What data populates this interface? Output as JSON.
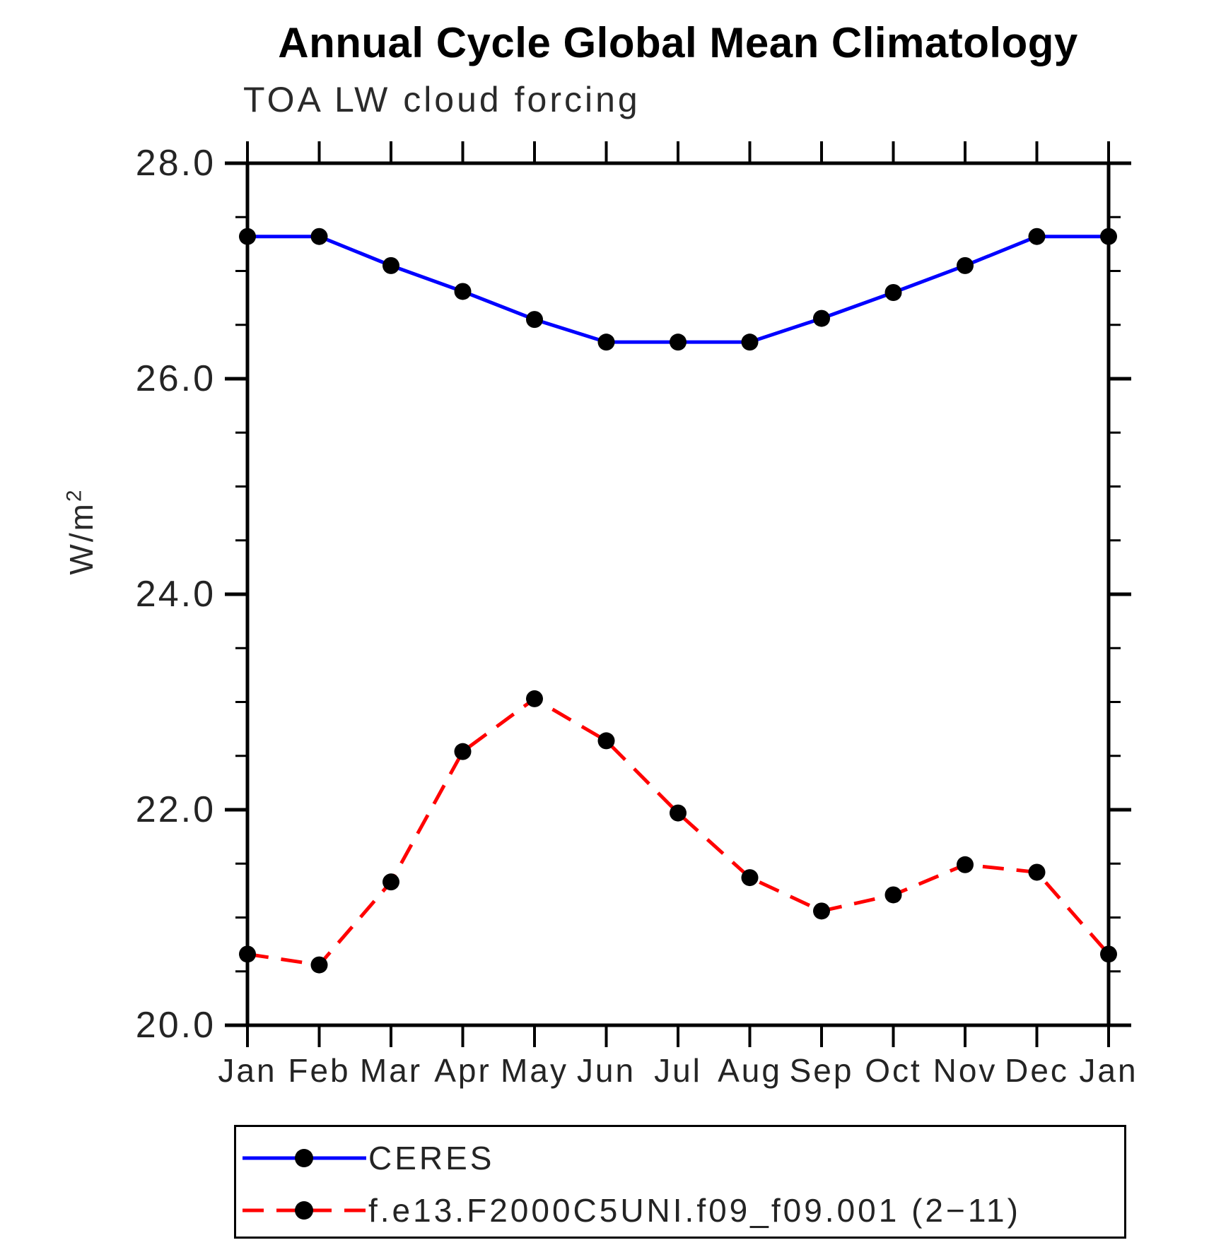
{
  "header": {
    "title": "Annual Cycle Global Mean Climatology",
    "subtitle": "TOA LW cloud forcing"
  },
  "y_axis": {
    "label_base": "W/m",
    "label_sup": "2"
  },
  "legend": {
    "position": "bottom",
    "entries": [
      {
        "label": "CERES",
        "color": "#0000ff",
        "style": "solid"
      },
      {
        "label": "f.e13.F2000C5UNI.f09_f09.001 (2−11)",
        "color": "#ff0000",
        "style": "dashed"
      }
    ]
  },
  "chart_data": {
    "type": "line",
    "title": "Annual Cycle Global Mean Climatology",
    "subtitle": "TOA LW cloud forcing",
    "ylabel": "W/m^2",
    "x": [
      "Jan",
      "Feb",
      "Mar",
      "Apr",
      "May",
      "Jun",
      "Jul",
      "Aug",
      "Sep",
      "Oct",
      "Nov",
      "Dec",
      "Jan"
    ],
    "series": [
      {
        "name": "CERES",
        "color": "#0000ff",
        "style": "solid",
        "values": [
          27.32,
          27.32,
          27.05,
          26.81,
          26.55,
          26.34,
          26.34,
          26.34,
          26.56,
          26.8,
          27.05,
          27.32,
          27.32
        ]
      },
      {
        "name": "f.e13.F2000C5UNI.f09_f09.001 (2−11)",
        "color": "#ff0000",
        "style": "dashed",
        "values": [
          20.66,
          20.56,
          21.33,
          22.54,
          23.03,
          22.64,
          21.97,
          21.37,
          21.06,
          21.21,
          21.49,
          21.42,
          20.66
        ]
      }
    ],
    "ylim": [
      20.0,
      28.0
    ],
    "ytick_major": [
      28.0,
      26.0,
      24.0,
      22.0,
      20.0
    ],
    "ytick_labels": [
      "28.0",
      "26.0",
      "24.0",
      "22.0",
      "20.0"
    ],
    "ytick_minor_step": 0.5,
    "marker": "filled-circle",
    "marker_color": "#000000",
    "grid": false,
    "legend_position": "bottom"
  }
}
